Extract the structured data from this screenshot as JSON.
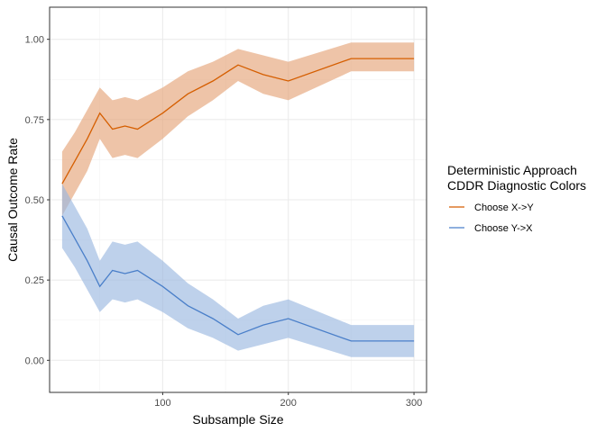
{
  "chart_data": {
    "type": "line",
    "xlabel": "Subsample Size",
    "ylabel": "Causal Outcome Rate",
    "xlim": [
      10,
      310
    ],
    "ylim": [
      -0.1,
      1.1
    ],
    "x_ticks": [
      100,
      200,
      300
    ],
    "y_ticks": [
      0.0,
      0.25,
      0.5,
      0.75,
      1.0
    ],
    "x_tick_labels": [
      "100",
      "200",
      "300"
    ],
    "y_tick_labels": [
      "0.00",
      "0.25",
      "0.50",
      "0.75",
      "1.00"
    ],
    "grid": true,
    "legend": {
      "title_lines": [
        "Deterministic Approach",
        "CDDR Diagnostic Colors"
      ],
      "placement": "right"
    },
    "x": [
      20,
      30,
      40,
      50,
      60,
      70,
      80,
      100,
      120,
      140,
      160,
      180,
      200,
      250,
      300
    ],
    "series": [
      {
        "name": "Choose X->Y",
        "color": "#D55E00",
        "band_color": "#E5A57A",
        "values": [
          0.55,
          0.62,
          0.69,
          0.77,
          0.72,
          0.73,
          0.72,
          0.77,
          0.83,
          0.87,
          0.92,
          0.89,
          0.87,
          0.94,
          0.94
        ],
        "lower": [
          0.45,
          0.52,
          0.59,
          0.69,
          0.63,
          0.64,
          0.63,
          0.69,
          0.76,
          0.81,
          0.87,
          0.83,
          0.81,
          0.9,
          0.9
        ],
        "upper": [
          0.65,
          0.71,
          0.78,
          0.85,
          0.81,
          0.82,
          0.81,
          0.85,
          0.9,
          0.93,
          0.97,
          0.95,
          0.93,
          0.99,
          0.99
        ]
      },
      {
        "name": "Choose Y->X",
        "color": "#4A7FC9",
        "band_color": "#9BB8E0",
        "values": [
          0.45,
          0.38,
          0.31,
          0.23,
          0.28,
          0.27,
          0.28,
          0.23,
          0.17,
          0.13,
          0.08,
          0.11,
          0.13,
          0.06,
          0.06
        ],
        "lower": [
          0.35,
          0.29,
          0.22,
          0.15,
          0.19,
          0.18,
          0.19,
          0.15,
          0.1,
          0.07,
          0.03,
          0.05,
          0.07,
          0.01,
          0.01
        ],
        "upper": [
          0.55,
          0.48,
          0.41,
          0.31,
          0.37,
          0.36,
          0.37,
          0.31,
          0.24,
          0.19,
          0.13,
          0.17,
          0.19,
          0.11,
          0.11
        ]
      }
    ]
  }
}
